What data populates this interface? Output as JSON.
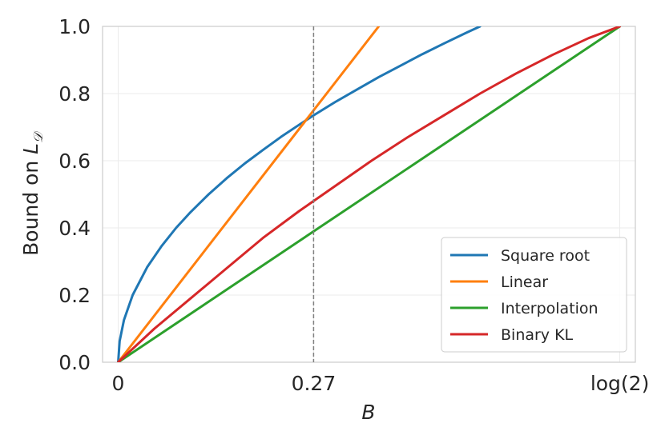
{
  "chart_data": {
    "type": "line",
    "xlabel": "B",
    "ylabel_prefix": "Bound on ",
    "ylabel_symbol": "L",
    "ylabel_subscript": "𝒟",
    "xlim": [
      -0.0216,
      0.7146
    ],
    "ylim": [
      0,
      1
    ],
    "x_ticks": [
      {
        "value": 0,
        "label": "0"
      },
      {
        "value": 0.27,
        "label": "0.27"
      },
      {
        "value": 0.6931,
        "label": "log(2)"
      }
    ],
    "y_ticks": [
      {
        "value": 0.0,
        "label": "0.0"
      },
      {
        "value": 0.2,
        "label": "0.2"
      },
      {
        "value": 0.4,
        "label": "0.4"
      },
      {
        "value": 0.6,
        "label": "0.6"
      },
      {
        "value": 0.8,
        "label": "0.8"
      },
      {
        "value": 1.0,
        "label": "1.0"
      }
    ],
    "grid": true,
    "vline": {
      "x": 0.27,
      "style": "dashed",
      "color": "#808080"
    },
    "legend_position": "lower-right",
    "series": [
      {
        "name": "Square root",
        "color": "#1f77b4",
        "x": [
          0,
          0.002,
          0.008,
          0.02,
          0.04,
          0.06,
          0.08,
          0.1,
          0.125,
          0.15,
          0.175,
          0.2,
          0.225,
          0.25,
          0.27,
          0.3,
          0.33,
          0.36,
          0.39,
          0.42,
          0.45,
          0.48,
          0.5
        ],
        "y": [
          0,
          0.063,
          0.126,
          0.2,
          0.283,
          0.346,
          0.4,
          0.447,
          0.5,
          0.548,
          0.592,
          0.632,
          0.671,
          0.707,
          0.735,
          0.775,
          0.812,
          0.849,
          0.883,
          0.917,
          0.949,
          0.98,
          1.0
        ]
      },
      {
        "name": "Linear",
        "color": "#ff7f0e",
        "x": [
          0,
          0.36
        ],
        "y": [
          0,
          1.0
        ]
      },
      {
        "name": "Interpolation",
        "color": "#2ca02c",
        "x": [
          0,
          0.6931
        ],
        "y": [
          0,
          1.0
        ]
      },
      {
        "name": "Binary KL",
        "color": "#d62728",
        "x": [
          0,
          0.05,
          0.1,
          0.15,
          0.2,
          0.25,
          0.27,
          0.3,
          0.35,
          0.4,
          0.45,
          0.5,
          0.55,
          0.6,
          0.65,
          0.6931
        ],
        "y": [
          0,
          0.1,
          0.19,
          0.28,
          0.37,
          0.45,
          0.48,
          0.525,
          0.6,
          0.67,
          0.735,
          0.8,
          0.86,
          0.915,
          0.965,
          1.0
        ]
      }
    ]
  }
}
